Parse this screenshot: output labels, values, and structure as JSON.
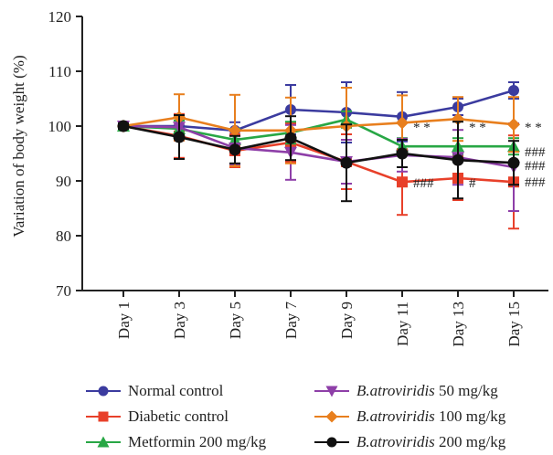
{
  "chart_data": {
    "type": "line",
    "title": "",
    "xlabel": "",
    "ylabel": "Variation of body weight (%)",
    "ylim": [
      70,
      120
    ],
    "yticks": [
      70,
      80,
      90,
      100,
      110,
      120
    ],
    "categories": [
      "Day 1",
      "Day 3",
      "Day 5",
      "Day 7",
      "Day 9",
      "Day 11",
      "Day 13",
      "Day 15"
    ],
    "grid": false,
    "legend_position": "bottom",
    "series": [
      {
        "name": "Normal control",
        "species": "",
        "dose": "",
        "color": "#3b3b9f",
        "marker": "circle",
        "values": [
          100,
          100,
          99.2,
          103,
          102.5,
          101.7,
          103.5,
          106.5
        ],
        "errors": [
          0.5,
          1.5,
          1.5,
          4.5,
          5.5,
          4.5,
          1.5,
          1.5
        ]
      },
      {
        "name": "Diabetic control",
        "species": "",
        "dose": "",
        "color": "#e8402a",
        "marker": "square",
        "values": [
          100,
          98.2,
          95.5,
          97,
          93.5,
          89.8,
          90.5,
          89.8
        ],
        "errors": [
          0.5,
          4,
          3,
          3.5,
          5,
          6,
          4,
          8.5
        ]
      },
      {
        "name": "",
        "species": "Metformin",
        "dose": "200 mg/kg",
        "color": "#28a745",
        "marker": "triangle-up",
        "values": [
          100,
          99.5,
          97.5,
          98.8,
          101.2,
          96.3,
          96.3,
          96.3
        ],
        "errors": [
          0.5,
          1.5,
          2,
          2,
          1.5,
          1.5,
          1.5,
          1.5
        ]
      },
      {
        "name": "",
        "species": "B.atroviridis",
        "dose": "50 mg/kg",
        "color": "#8e3fa8",
        "marker": "triangle-down",
        "values": [
          100,
          99.8,
          96,
          95.2,
          93.5,
          94.7,
          94.3,
          92.5
        ],
        "errors": [
          0.5,
          2,
          3,
          5,
          4,
          3,
          5,
          8
        ]
      },
      {
        "name": "",
        "species": "B.atroviridis",
        "dose": "100 mg/kg",
        "color": "#e87f1e",
        "marker": "diamond",
        "values": [
          100,
          101.6,
          99.2,
          99.2,
          100,
          100.6,
          101.3,
          100.3
        ],
        "errors": [
          0.5,
          4.2,
          6.5,
          6,
          7,
          5,
          4,
          5
        ]
      },
      {
        "name": "",
        "species": "B.atroviridis",
        "dose": "200 mg/kg",
        "color": "#111111",
        "marker": "circle",
        "values": [
          100,
          98,
          95.7,
          97.8,
          93.3,
          95,
          93.8,
          93.3
        ],
        "errors": [
          0.5,
          4,
          2.5,
          4,
          7,
          2.5,
          7,
          4
        ]
      }
    ],
    "annotations": [
      {
        "text": "* *",
        "x": "Day 11",
        "y": 100
      },
      {
        "text": "* *",
        "x": "Day 13",
        "y": 100
      },
      {
        "text": "* *",
        "x": "Day 15",
        "y": 100
      },
      {
        "text": "###",
        "x": "Day 11",
        "y": 89.8
      },
      {
        "text": "#",
        "x": "Day 13",
        "y": 89.8
      },
      {
        "text": "###",
        "x": "Day 15",
        "y": 95.5
      },
      {
        "text": "###",
        "x": "Day 15",
        "y": 93.0
      },
      {
        "text": "###",
        "x": "Day 15",
        "y": 90.0
      }
    ]
  }
}
